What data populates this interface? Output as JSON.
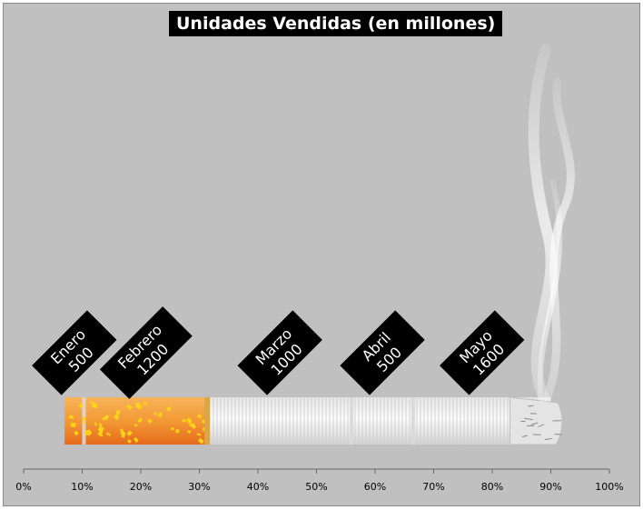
{
  "chart_data": {
    "type": "bar",
    "title": "Unidades Vendidas (en millones)",
    "orientation": "horizontal-stacked-100",
    "categories": [
      "Enero",
      "Febrero",
      "Marzo",
      "Abril",
      "Mayo"
    ],
    "values": [
      500,
      1200,
      1000,
      500,
      1600
    ],
    "segments": [
      {
        "name": "Enero",
        "value": 500,
        "start_pct": 7,
        "end_pct": 10.3
      },
      {
        "name": "Febrero",
        "value": 1200,
        "start_pct": 10.3,
        "end_pct": 31.5
      },
      {
        "name": "Marzo",
        "value": 1000,
        "start_pct": 31.5,
        "end_pct": 56
      },
      {
        "name": "Abril",
        "value": 500,
        "start_pct": 56,
        "end_pct": 66.5
      },
      {
        "name": "Mayo",
        "value": 1600,
        "start_pct": 66.5,
        "end_pct": 90
      }
    ],
    "x_ticks": [
      "0%",
      "10%",
      "20%",
      "30%",
      "40%",
      "50%",
      "60%",
      "70%",
      "80%",
      "90%",
      "100%"
    ],
    "xlim": [
      0,
      100
    ],
    "grid": false,
    "legend": "none",
    "colors": {
      "background": "#c0c0c0",
      "label_bg": "#000000",
      "label_text": "#ffffff",
      "filter_orange": "#f5a340",
      "filter_speckle": "#ffd21a",
      "paper": "#f0f0f0"
    }
  }
}
